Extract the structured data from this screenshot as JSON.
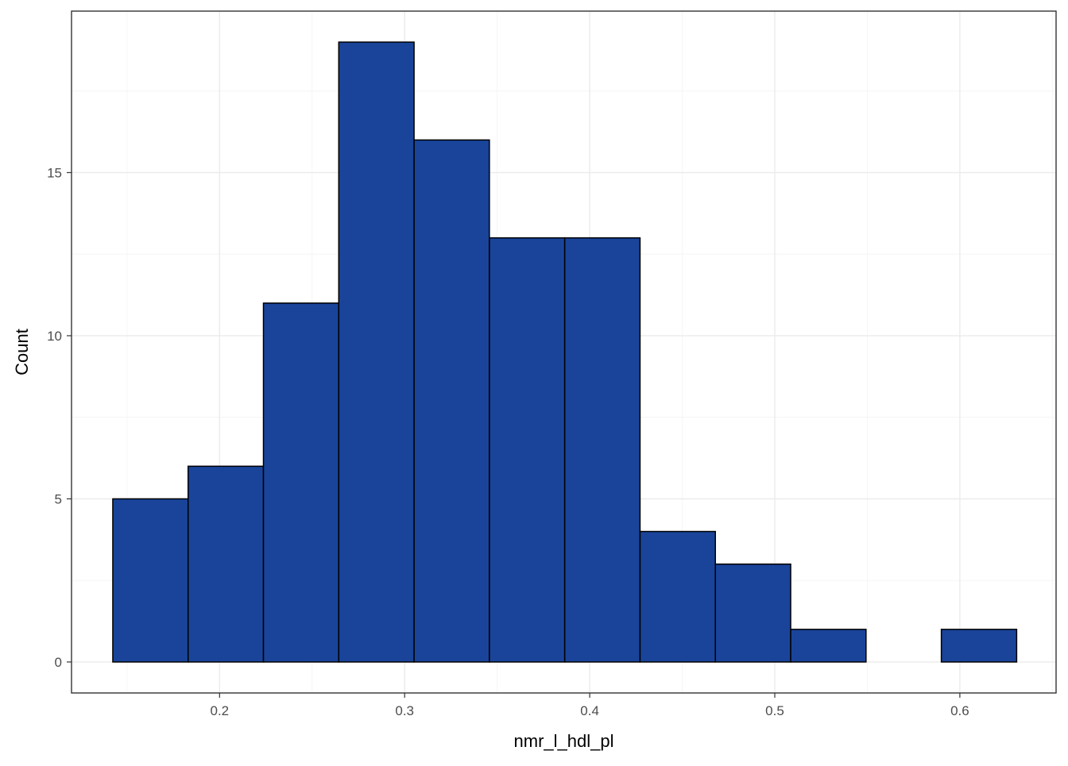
{
  "chart_data": {
    "type": "bar",
    "subtype": "histogram",
    "title": "",
    "xlabel": "nmr_l_hdl_pl",
    "ylabel": "Count",
    "bar_color": "#19449A",
    "bar_outline": "#000000",
    "panel_border": "#333333",
    "grid": true,
    "legend": "none",
    "xlim": [
      0.12,
      0.652
    ],
    "ylim": [
      -0.95,
      19.95
    ],
    "x_ticks": [
      0.2,
      0.3,
      0.4,
      0.5,
      0.6
    ],
    "x_tick_labels": [
      "0.2",
      "0.3",
      "0.4",
      "0.5",
      "0.6"
    ],
    "y_ticks": [
      0,
      5,
      10,
      15
    ],
    "y_tick_labels": [
      "0",
      "5",
      "10",
      "15"
    ],
    "bin_edges": [
      0.1423,
      0.183,
      0.2237,
      0.2644,
      0.3051,
      0.3458,
      0.3865,
      0.4272,
      0.4679,
      0.5086,
      0.5493,
      0.59,
      0.6307
    ],
    "counts": [
      5,
      6,
      11,
      19,
      16,
      13,
      13,
      4,
      3,
      1,
      0,
      1
    ]
  }
}
